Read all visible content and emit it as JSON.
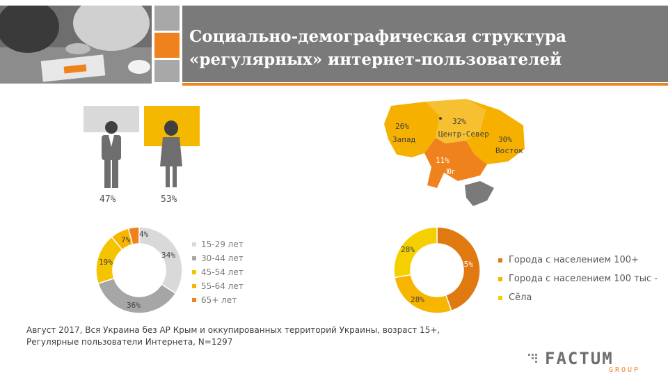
{
  "title_line1": "Социально-демографическая структура",
  "title_line2": "«регулярных» интернет-пользователей",
  "gender": {
    "male_pct": "47%",
    "female_pct": "53%"
  },
  "region_map": {
    "regions": [
      {
        "pct": "26%",
        "name": "Запад",
        "value": 26
      },
      {
        "pct": "32%",
        "name": "Центр-Север",
        "value": 32
      },
      {
        "pct": "30%",
        "name": "Восток",
        "value": 30
      },
      {
        "pct": "11%",
        "name": "Юг",
        "value": 11
      }
    ]
  },
  "colors": {
    "orange": "#f0821e",
    "dark_orange": "#e07a10",
    "yellow": "#f5c400",
    "amber": "#f7b500",
    "light_gray": "#d9d9d9",
    "gray": "#a6a6a6",
    "panel_gray": "#7a7a7a"
  },
  "footnote_line1": "Август 2017, Вся Украина без АР Крым и оккупированных территорий Украины, возраст 15+,",
  "footnote_line2": "Регулярные пользователи Интернета, N=1297",
  "logo": {
    "word": "FACTUM",
    "sub": "GROUP"
  },
  "icons": [
    "male-person-icon",
    "female-person-icon",
    "photo-people-icon",
    "ukraine-map"
  ],
  "chart_data": [
    {
      "type": "pie",
      "variant": "donut",
      "categories": [
        "15-29 лет",
        "30-44 лет",
        "45-54 лет",
        "55-64 лет",
        "65+ лет"
      ],
      "values": [
        34,
        36,
        19,
        7,
        4
      ],
      "labels": [
        "34%",
        "36%",
        "19%",
        "7%",
        "4%"
      ],
      "colors": [
        "#d9d9d9",
        "#a6a6a6",
        "#f5c400",
        "#f7b500",
        "#f0821e"
      ],
      "legend_position": "right"
    },
    {
      "type": "pie",
      "variant": "donut",
      "categories": [
        "Города с населением 100+",
        "Города с населением 100 тыс -",
        "Сёла"
      ],
      "values": [
        45,
        28,
        28
      ],
      "labels": [
        "45%",
        "28%",
        "28%"
      ],
      "colors": [
        "#e07a10",
        "#f7b500",
        "#f5d000"
      ],
      "legend_position": "right"
    }
  ]
}
